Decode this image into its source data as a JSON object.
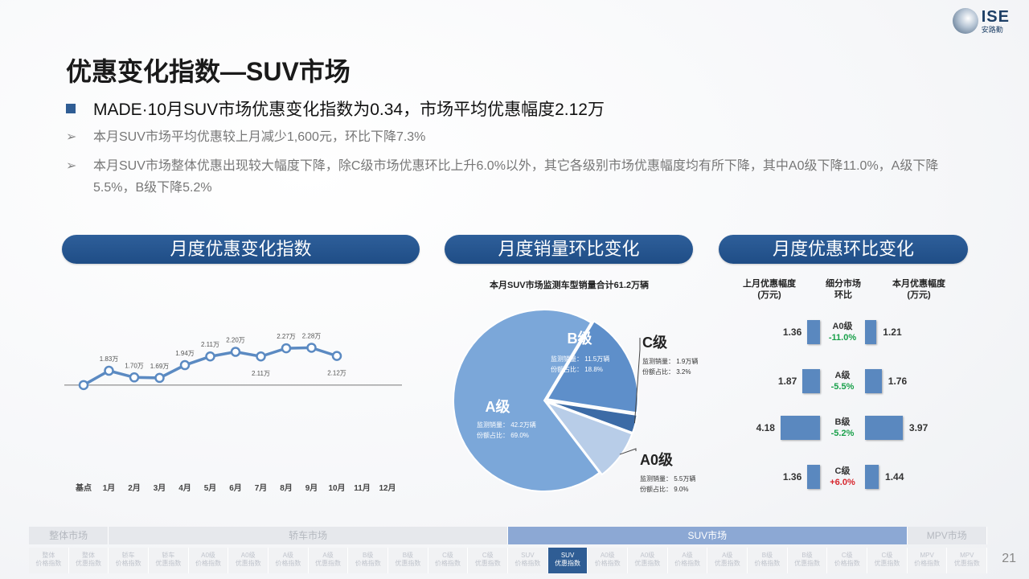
{
  "logo": {
    "big": "ISE",
    "small": "安路勤"
  },
  "title": "优惠变化指数—SUV市场",
  "headline": "MADE·10月SUV市场优惠变化指数为0.34，市场平均优惠幅度2.12万",
  "bullets": [
    {
      "arrow": "➢",
      "text": "本月SUV市场平均优惠较上月减少1,600元，环比下降7.3%"
    },
    {
      "arrow": "➢",
      "text": "本月SUV市场整体优惠出现较大幅度下降，除C级市场优惠环比上升6.0%以外，其它各级别市场优惠幅度均有所下降，其中A0级下降11.0%，A级下降5.5%，B级下降5.2%"
    }
  ],
  "sections": {
    "index": "月度优惠变化指数",
    "sales": "月度销量环比变化",
    "discount": "月度优惠环比变化"
  },
  "chart_data": [
    {
      "type": "line",
      "title": "月度优惠变化指数",
      "categories": [
        "基点",
        "1月",
        "2月",
        "3月",
        "4月",
        "5月",
        "6月",
        "7月",
        "8月",
        "9月",
        "10月",
        "11月",
        "12月"
      ],
      "series": [
        {
          "values": [
            1.55,
            1.83,
            1.7,
            1.69,
            1.94,
            2.11,
            2.2,
            2.11,
            2.27,
            2.28,
            2.12,
            null,
            null
          ]
        }
      ],
      "data_labels": [
        "",
        "1.83万",
        "1.70万",
        "1.69万",
        "1.94万",
        "2.11万",
        "2.20万",
        "2.11万",
        "2.27万",
        "2.28万",
        "2.12万",
        "",
        ""
      ],
      "color": "#5b8ac2"
    },
    {
      "type": "pie",
      "title": "本月SUV市场监测车型销量合计61.2万辆",
      "slices": [
        {
          "name": "A级",
          "sales_label": "监测销量：",
          "sales": "42.2万辆",
          "share_label": "份额占比：",
          "share": "69.0%",
          "value": 69.0,
          "color": "#7ba7d9"
        },
        {
          "name": "B级",
          "sales_label": "监测销量：",
          "sales": "11.5万辆",
          "share_label": "份额占比：",
          "share": "18.8%",
          "value": 18.8,
          "color": "#5e8fca"
        },
        {
          "name": "C级",
          "sales_label": "监测销量：",
          "sales": "1.9万辆",
          "share_label": "份额占比：",
          "share": "3.2%",
          "value": 3.2,
          "color": "#3c6ba6"
        },
        {
          "name": "A0级",
          "sales_label": "监测销量：",
          "sales": "5.5万辆",
          "share_label": "份额占比：",
          "share": "9.0%",
          "value": 9.0,
          "color": "#b8cde8"
        }
      ]
    },
    {
      "type": "bar",
      "title": "月度优惠环比变化",
      "headers": {
        "left": "上月优惠幅度\n(万元)",
        "mid": "细分市场\n环比",
        "right": "本月优惠幅度\n(万元)"
      },
      "rows": [
        {
          "segment": "A0级",
          "change": "-11.0%",
          "prev": 1.36,
          "prev_label": "1.36",
          "curr": 1.21,
          "curr_label": "1.21",
          "dir": "neg"
        },
        {
          "segment": "A级",
          "change": "-5.5%",
          "prev": 1.87,
          "prev_label": "1.87",
          "curr": 1.76,
          "curr_label": "1.76",
          "dir": "neg"
        },
        {
          "segment": "B级",
          "change": "-5.2%",
          "prev": 4.18,
          "prev_label": "4.18",
          "curr": 3.97,
          "curr_label": "3.97",
          "dir": "neg"
        },
        {
          "segment": "C级",
          "change": "+6.0%",
          "prev": 1.36,
          "prev_label": "1.36",
          "curr": 1.44,
          "curr_label": "1.44",
          "dir": "pos"
        }
      ],
      "bar_color": "#5a88bf",
      "neg_color": "#19a04a",
      "pos_color": "#d7262d"
    }
  ],
  "nav": {
    "sections": [
      {
        "label": "整体市场",
        "span": 2,
        "active": false
      },
      {
        "label": "轿车市场",
        "span": 10,
        "active": false
      },
      {
        "label": "SUV市场",
        "span": 10,
        "active": true
      },
      {
        "label": "MPV市场",
        "span": 2,
        "active": false
      }
    ],
    "items": [
      {
        "l1": "整体",
        "l2": "价格指数",
        "active": false
      },
      {
        "l1": "整体",
        "l2": "优惠指数",
        "active": false
      },
      {
        "l1": "轿车",
        "l2": "价格指数",
        "active": false
      },
      {
        "l1": "轿车",
        "l2": "优惠指数",
        "active": false
      },
      {
        "l1": "A0级",
        "l2": "价格指数",
        "active": false
      },
      {
        "l1": "A0级",
        "l2": "优惠指数",
        "active": false
      },
      {
        "l1": "A级",
        "l2": "价格指数",
        "active": false
      },
      {
        "l1": "A级",
        "l2": "优惠指数",
        "active": false
      },
      {
        "l1": "B级",
        "l2": "价格指数",
        "active": false
      },
      {
        "l1": "B级",
        "l2": "优惠指数",
        "active": false
      },
      {
        "l1": "C级",
        "l2": "价格指数",
        "active": false
      },
      {
        "l1": "C级",
        "l2": "优惠指数",
        "active": false
      },
      {
        "l1": "SUV",
        "l2": "价格指数",
        "active": false
      },
      {
        "l1": "SUV",
        "l2": "优惠指数",
        "active": true
      },
      {
        "l1": "A0级",
        "l2": "价格指数",
        "active": false
      },
      {
        "l1": "A0级",
        "l2": "优惠指数",
        "active": false
      },
      {
        "l1": "A级",
        "l2": "价格指数",
        "active": false
      },
      {
        "l1": "A级",
        "l2": "优惠指数",
        "active": false
      },
      {
        "l1": "B级",
        "l2": "价格指数",
        "active": false
      },
      {
        "l1": "B级",
        "l2": "优惠指数",
        "active": false
      },
      {
        "l1": "C级",
        "l2": "价格指数",
        "active": false
      },
      {
        "l1": "C级",
        "l2": "优惠指数",
        "active": false
      },
      {
        "l1": "MPV",
        "l2": "价格指数",
        "active": false
      },
      {
        "l1": "MPV",
        "l2": "优惠指数",
        "active": false
      }
    ]
  },
  "page_number": "21"
}
